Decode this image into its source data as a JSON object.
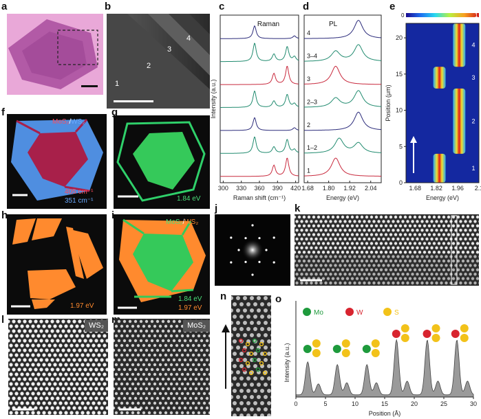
{
  "panels": {
    "a": {
      "label": "a"
    },
    "b": {
      "label": "b",
      "regions": [
        "1",
        "2",
        "3",
        "4"
      ]
    },
    "c": {
      "label": "c",
      "title": "Raman",
      "xlabel": "Raman shift (cm⁻¹)",
      "ylabel": "Intensity (a.u.)",
      "xticks": [
        "300",
        "330",
        "360",
        "390",
        "420"
      ]
    },
    "d": {
      "label": "d",
      "title": "PL",
      "xlabel": "Energy (eV)",
      "xticks": [
        "1.68",
        "1.80",
        "1.92",
        "2.04"
      ],
      "traces": [
        "4",
        "3–4",
        "3",
        "2–3",
        "2",
        "1–2",
        "1"
      ]
    },
    "e": {
      "label": "e",
      "xlabel": "Energy (eV)",
      "ylabel": "Position (μm)",
      "xticks": [
        "1.68",
        "1.82",
        "1.96",
        "2.1"
      ],
      "yticks": [
        "0",
        "5",
        "10",
        "15",
        "20"
      ],
      "cbar_min": "0",
      "cbar_max": "1",
      "regions": [
        "1",
        "2",
        "3",
        "4"
      ]
    },
    "f": {
      "label": "f",
      "legend_a": "MoS₂",
      "legend_sep": "/",
      "legend_b": "WS₂",
      "line1": "405 cm⁻¹",
      "line2": "351 cm⁻¹"
    },
    "g": {
      "label": "g",
      "energy": "1.84 eV"
    },
    "h": {
      "label": "h",
      "energy": "1.97 eV"
    },
    "i": {
      "label": "i",
      "legend_a": "MoS₂",
      "legend_sep": "/",
      "legend_b": "WS₂",
      "line1": "1.84 eV",
      "line2": "1.97 eV"
    },
    "j": {
      "label": "j"
    },
    "k": {
      "label": "k"
    },
    "l": {
      "label": "l",
      "tag": "WS₂"
    },
    "m": {
      "label": "m",
      "tag": "MoS₂"
    },
    "n": {
      "label": "n"
    },
    "o": {
      "label": "o",
      "xlabel": "Position (Å)",
      "ylabel": "Intensity (a.u.)",
      "xticks": [
        "0",
        "5",
        "10",
        "15",
        "20",
        "25",
        "30"
      ],
      "legend": [
        "Mo",
        "W",
        "S"
      ]
    }
  },
  "colors": {
    "raman_red": "#c8283c",
    "raman_green": "#1f8a6e",
    "raman_blue": "#2a2a7a",
    "mos2": "#c8243c",
    "ws2": "#4f8ee0",
    "pl_green": "#2fd06a",
    "pl_orange": "#ff8a2e",
    "mo": "#1e9a3c",
    "w": "#d8242f",
    "s": "#f2c21a"
  },
  "chart_data": [
    {
      "type": "line",
      "panel": "c",
      "title": "Raman",
      "xlabel": "Raman shift (cm⁻¹)",
      "ylabel": "Intensity (a.u.)",
      "xlim": [
        295,
        425
      ],
      "series": [
        {
          "color": "#2a2a7a",
          "peaks": [
            [
              352,
              0.7
            ],
            [
              418,
              0.15
            ]
          ]
        },
        {
          "color": "#1f8a6e",
          "peaks": [
            [
              352,
              1.0
            ],
            [
              384,
              0.4
            ],
            [
              406,
              0.8
            ],
            [
              418,
              0.25
            ]
          ]
        },
        {
          "color": "#c8283c",
          "peaks": [
            [
              384,
              0.6
            ],
            [
              406,
              1.0
            ]
          ]
        },
        {
          "color": "#1f8a6e",
          "peaks": [
            [
              352,
              0.9
            ],
            [
              384,
              0.35
            ],
            [
              406,
              0.7
            ],
            [
              418,
              0.2
            ]
          ]
        },
        {
          "color": "#2a2a7a",
          "peaks": [
            [
              352,
              0.7
            ],
            [
              418,
              0.15
            ]
          ]
        },
        {
          "color": "#1f8a6e",
          "peaks": [
            [
              352,
              0.9
            ],
            [
              384,
              0.35
            ],
            [
              406,
              0.75
            ],
            [
              418,
              0.2
            ]
          ]
        },
        {
          "color": "#c8283c",
          "peaks": [
            [
              384,
              0.6
            ],
            [
              406,
              1.0
            ]
          ]
        }
      ]
    },
    {
      "type": "line",
      "panel": "d",
      "title": "PL",
      "xlabel": "Energy (eV)",
      "xlim": [
        1.66,
        2.1
      ],
      "series": [
        {
          "name": "4",
          "color": "#2a2a7a",
          "peaks": [
            [
              1.97,
              1.0
            ]
          ]
        },
        {
          "name": "3–4",
          "color": "#1f8a6e",
          "peaks": [
            [
              1.84,
              0.55
            ],
            [
              1.97,
              0.9
            ]
          ]
        },
        {
          "name": "3",
          "color": "#c8283c",
          "peaks": [
            [
              1.84,
              1.0
            ]
          ]
        },
        {
          "name": "2–3",
          "color": "#1f8a6e",
          "peaks": [
            [
              1.84,
              0.5
            ],
            [
              1.97,
              0.9
            ]
          ]
        },
        {
          "name": "2",
          "color": "#2a2a7a",
          "peaks": [
            [
              1.97,
              1.0
            ]
          ]
        },
        {
          "name": "1–2",
          "color": "#1f8a6e",
          "peaks": [
            [
              1.86,
              0.8
            ],
            [
              1.97,
              0.55
            ]
          ]
        },
        {
          "name": "1",
          "color": "#c8283c",
          "peaks": [
            [
              1.84,
              1.0
            ]
          ]
        }
      ]
    },
    {
      "type": "heatmap",
      "panel": "e",
      "xlabel": "Energy (eV)",
      "ylabel": "Position (μm)",
      "xlim": [
        1.62,
        2.1
      ],
      "ylim": [
        0,
        22
      ],
      "segments": [
        {
          "region": "1",
          "y": [
            0,
            4
          ],
          "energy": 1.84
        },
        {
          "region": "2",
          "y": [
            4,
            13
          ],
          "energy": 1.97
        },
        {
          "region": "3",
          "y": [
            13,
            16
          ],
          "energy": 1.84
        },
        {
          "region": "4",
          "y": [
            16,
            22
          ],
          "energy": 1.97
        }
      ]
    },
    {
      "type": "area",
      "panel": "o",
      "xlabel": "Position (Å)",
      "ylabel": "Intensity (a.u.)",
      "xlim": [
        0,
        30
      ],
      "peaks": [
        [
          2,
          0.6
        ],
        [
          3.8,
          0.2
        ],
        [
          7,
          0.55
        ],
        [
          8.6,
          0.22
        ],
        [
          12,
          0.55
        ],
        [
          13.6,
          0.22
        ],
        [
          17,
          1.0
        ],
        [
          18.8,
          0.25
        ],
        [
          22.2,
          1.0
        ],
        [
          24,
          0.25
        ],
        [
          27.2,
          1.0
        ],
        [
          29,
          0.25
        ]
      ]
    }
  ]
}
